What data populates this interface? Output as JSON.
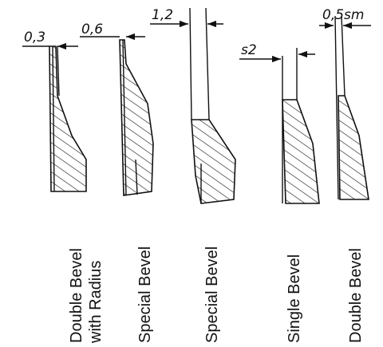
{
  "profiles": [
    {
      "dimension": "0,3",
      "label": [
        "Double Bevel",
        "with Radius"
      ]
    },
    {
      "dimension": "0,6",
      "label": [
        "Special Bevel"
      ]
    },
    {
      "dimension": "1,2",
      "label": [
        "Special Bevel"
      ]
    },
    {
      "dimension": "s2",
      "label": [
        "Single Bevel"
      ]
    },
    {
      "dimension": "0,5sm",
      "label": [
        "Double Bevel"
      ]
    }
  ]
}
